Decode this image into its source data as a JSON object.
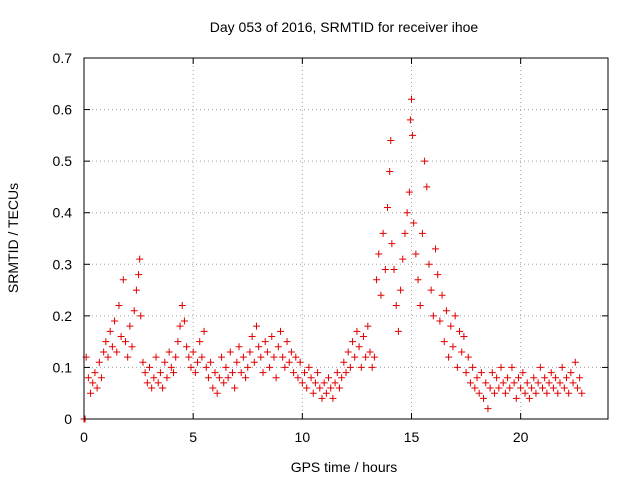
{
  "chart_data": {
    "type": "scatter",
    "title": "Day 053 of 2016, SRMTID for receiver ihoe",
    "xlabel": "GPS time / hours",
    "ylabel": "SRMTID / TECUs",
    "xlim": [
      0,
      24
    ],
    "ylim": [
      0,
      0.7
    ],
    "xticks": [
      "0",
      "5",
      "10",
      "15",
      "20"
    ],
    "yticks": [
      "0",
      "0.1",
      "0.2",
      "0.3",
      "0.4",
      "0.5",
      "0.6",
      "0.7"
    ],
    "grid": true,
    "marker": "plus",
    "color": "#e00000",
    "series": [
      {
        "name": "SRMTID",
        "points": [
          [
            0.0,
            0.0
          ],
          [
            0.05,
            0.0
          ],
          [
            0.1,
            0.12
          ],
          [
            0.2,
            0.08
          ],
          [
            0.3,
            0.05
          ],
          [
            0.4,
            0.07
          ],
          [
            0.5,
            0.09
          ],
          [
            0.6,
            0.06
          ],
          [
            0.7,
            0.11
          ],
          [
            0.8,
            0.08
          ],
          [
            0.9,
            0.13
          ],
          [
            1.0,
            0.15
          ],
          [
            1.1,
            0.12
          ],
          [
            1.2,
            0.17
          ],
          [
            1.3,
            0.14
          ],
          [
            1.4,
            0.19
          ],
          [
            1.5,
            0.13
          ],
          [
            1.6,
            0.22
          ],
          [
            1.7,
            0.16
          ],
          [
            1.8,
            0.27
          ],
          [
            1.9,
            0.15
          ],
          [
            2.0,
            0.12
          ],
          [
            2.1,
            0.18
          ],
          [
            2.2,
            0.14
          ],
          [
            2.3,
            0.21
          ],
          [
            2.4,
            0.25
          ],
          [
            2.5,
            0.28
          ],
          [
            2.55,
            0.31
          ],
          [
            2.6,
            0.2
          ],
          [
            2.7,
            0.11
          ],
          [
            2.8,
            0.09
          ],
          [
            2.9,
            0.07
          ],
          [
            3.0,
            0.1
          ],
          [
            3.1,
            0.06
          ],
          [
            3.2,
            0.08
          ],
          [
            3.3,
            0.12
          ],
          [
            3.4,
            0.07
          ],
          [
            3.5,
            0.09
          ],
          [
            3.6,
            0.06
          ],
          [
            3.7,
            0.11
          ],
          [
            3.8,
            0.08
          ],
          [
            3.9,
            0.13
          ],
          [
            4.0,
            0.1
          ],
          [
            4.1,
            0.09
          ],
          [
            4.2,
            0.12
          ],
          [
            4.3,
            0.15
          ],
          [
            4.4,
            0.18
          ],
          [
            4.5,
            0.22
          ],
          [
            4.6,
            0.19
          ],
          [
            4.7,
            0.14
          ],
          [
            4.8,
            0.12
          ],
          [
            4.9,
            0.1
          ],
          [
            5.0,
            0.13
          ],
          [
            5.1,
            0.09
          ],
          [
            5.2,
            0.11
          ],
          [
            5.3,
            0.15
          ],
          [
            5.4,
            0.12
          ],
          [
            5.5,
            0.17
          ],
          [
            5.6,
            0.1
          ],
          [
            5.7,
            0.08
          ],
          [
            5.8,
            0.11
          ],
          [
            5.9,
            0.06
          ],
          [
            6.0,
            0.09
          ],
          [
            6.1,
            0.05
          ],
          [
            6.2,
            0.08
          ],
          [
            6.3,
            0.12
          ],
          [
            6.4,
            0.07
          ],
          [
            6.5,
            0.1
          ],
          [
            6.6,
            0.08
          ],
          [
            6.7,
            0.13
          ],
          [
            6.8,
            0.09
          ],
          [
            6.9,
            0.06
          ],
          [
            7.0,
            0.11
          ],
          [
            7.1,
            0.14
          ],
          [
            7.2,
            0.09
          ],
          [
            7.3,
            0.12
          ],
          [
            7.4,
            0.08
          ],
          [
            7.5,
            0.1
          ],
          [
            7.6,
            0.13
          ],
          [
            7.7,
            0.16
          ],
          [
            7.8,
            0.11
          ],
          [
            7.9,
            0.18
          ],
          [
            8.0,
            0.14
          ],
          [
            8.1,
            0.12
          ],
          [
            8.2,
            0.09
          ],
          [
            8.3,
            0.15
          ],
          [
            8.4,
            0.13
          ],
          [
            8.5,
            0.1
          ],
          [
            8.6,
            0.16
          ],
          [
            8.7,
            0.12
          ],
          [
            8.8,
            0.08
          ],
          [
            8.9,
            0.14
          ],
          [
            9.0,
            0.17
          ],
          [
            9.1,
            0.12
          ],
          [
            9.2,
            0.1
          ],
          [
            9.3,
            0.15
          ],
          [
            9.4,
            0.11
          ],
          [
            9.5,
            0.13
          ],
          [
            9.6,
            0.09
          ],
          [
            9.7,
            0.12
          ],
          [
            9.8,
            0.08
          ],
          [
            9.9,
            0.11
          ],
          [
            10.0,
            0.07
          ],
          [
            10.1,
            0.09
          ],
          [
            10.2,
            0.06
          ],
          [
            10.3,
            0.1
          ],
          [
            10.4,
            0.08
          ],
          [
            10.5,
            0.05
          ],
          [
            10.6,
            0.07
          ],
          [
            10.7,
            0.09
          ],
          [
            10.8,
            0.06
          ],
          [
            10.9,
            0.04
          ],
          [
            11.0,
            0.07
          ],
          [
            11.1,
            0.05
          ],
          [
            11.2,
            0.08
          ],
          [
            11.3,
            0.06
          ],
          [
            11.4,
            0.04
          ],
          [
            11.5,
            0.07
          ],
          [
            11.6,
            0.09
          ],
          [
            11.7,
            0.06
          ],
          [
            11.8,
            0.08
          ],
          [
            11.9,
            0.11
          ],
          [
            12.0,
            0.09
          ],
          [
            12.1,
            0.13
          ],
          [
            12.2,
            0.1
          ],
          [
            12.3,
            0.15
          ],
          [
            12.4,
            0.12
          ],
          [
            12.5,
            0.17
          ],
          [
            12.6,
            0.14
          ],
          [
            12.7,
            0.1
          ],
          [
            12.8,
            0.16
          ],
          [
            12.9,
            0.12
          ],
          [
            13.0,
            0.18
          ],
          [
            13.1,
            0.13
          ],
          [
            13.2,
            0.1
          ],
          [
            13.3,
            0.12
          ],
          [
            13.4,
            0.27
          ],
          [
            13.5,
            0.32
          ],
          [
            13.6,
            0.24
          ],
          [
            13.7,
            0.36
          ],
          [
            13.8,
            0.29
          ],
          [
            13.9,
            0.41
          ],
          [
            14.0,
            0.48
          ],
          [
            14.05,
            0.54
          ],
          [
            14.1,
            0.34
          ],
          [
            14.2,
            0.29
          ],
          [
            14.3,
            0.22
          ],
          [
            14.4,
            0.17
          ],
          [
            14.5,
            0.25
          ],
          [
            14.6,
            0.31
          ],
          [
            14.7,
            0.36
          ],
          [
            14.8,
            0.4
          ],
          [
            14.9,
            0.44
          ],
          [
            14.95,
            0.58
          ],
          [
            15.0,
            0.62
          ],
          [
            15.05,
            0.55
          ],
          [
            15.1,
            0.38
          ],
          [
            15.2,
            0.32
          ],
          [
            15.3,
            0.27
          ],
          [
            15.4,
            0.22
          ],
          [
            15.5,
            0.36
          ],
          [
            15.6,
            0.5
          ],
          [
            15.7,
            0.45
          ],
          [
            15.8,
            0.3
          ],
          [
            15.9,
            0.25
          ],
          [
            16.0,
            0.2
          ],
          [
            16.1,
            0.33
          ],
          [
            16.2,
            0.28
          ],
          [
            16.3,
            0.19
          ],
          [
            16.4,
            0.24
          ],
          [
            16.5,
            0.15
          ],
          [
            16.6,
            0.21
          ],
          [
            16.7,
            0.12
          ],
          [
            16.8,
            0.18
          ],
          [
            16.9,
            0.14
          ],
          [
            17.0,
            0.2
          ],
          [
            17.1,
            0.1
          ],
          [
            17.2,
            0.17
          ],
          [
            17.3,
            0.13
          ],
          [
            17.4,
            0.16
          ],
          [
            17.5,
            0.09
          ],
          [
            17.6,
            0.12
          ],
          [
            17.7,
            0.07
          ],
          [
            17.8,
            0.1
          ],
          [
            17.9,
            0.06
          ],
          [
            18.0,
            0.08
          ],
          [
            18.1,
            0.05
          ],
          [
            18.2,
            0.09
          ],
          [
            18.3,
            0.04
          ],
          [
            18.4,
            0.07
          ],
          [
            18.5,
            0.02
          ],
          [
            18.6,
            0.06
          ],
          [
            18.7,
            0.09
          ],
          [
            18.8,
            0.05
          ],
          [
            18.9,
            0.08
          ],
          [
            19.0,
            0.06
          ],
          [
            19.1,
            0.1
          ],
          [
            19.2,
            0.07
          ],
          [
            19.3,
            0.05
          ],
          [
            19.4,
            0.08
          ],
          [
            19.5,
            0.06
          ],
          [
            19.6,
            0.1
          ],
          [
            19.7,
            0.07
          ],
          [
            19.8,
            0.04
          ],
          [
            19.9,
            0.08
          ],
          [
            20.0,
            0.06
          ],
          [
            20.1,
            0.09
          ],
          [
            20.2,
            0.05
          ],
          [
            20.3,
            0.07
          ],
          [
            20.4,
            0.04
          ],
          [
            20.5,
            0.06
          ],
          [
            20.6,
            0.08
          ],
          [
            20.7,
            0.05
          ],
          [
            20.8,
            0.07
          ],
          [
            20.9,
            0.1
          ],
          [
            21.0,
            0.06
          ],
          [
            21.1,
            0.08
          ],
          [
            21.2,
            0.05
          ],
          [
            21.3,
            0.07
          ],
          [
            21.4,
            0.09
          ],
          [
            21.5,
            0.06
          ],
          [
            21.6,
            0.08
          ],
          [
            21.7,
            0.05
          ],
          [
            21.8,
            0.07
          ],
          [
            21.9,
            0.1
          ],
          [
            22.0,
            0.06
          ],
          [
            22.1,
            0.08
          ],
          [
            22.2,
            0.05
          ],
          [
            22.3,
            0.09
          ],
          [
            22.4,
            0.07
          ],
          [
            22.5,
            0.11
          ],
          [
            22.6,
            0.06
          ],
          [
            22.7,
            0.08
          ],
          [
            22.8,
            0.05
          ]
        ]
      }
    ]
  }
}
